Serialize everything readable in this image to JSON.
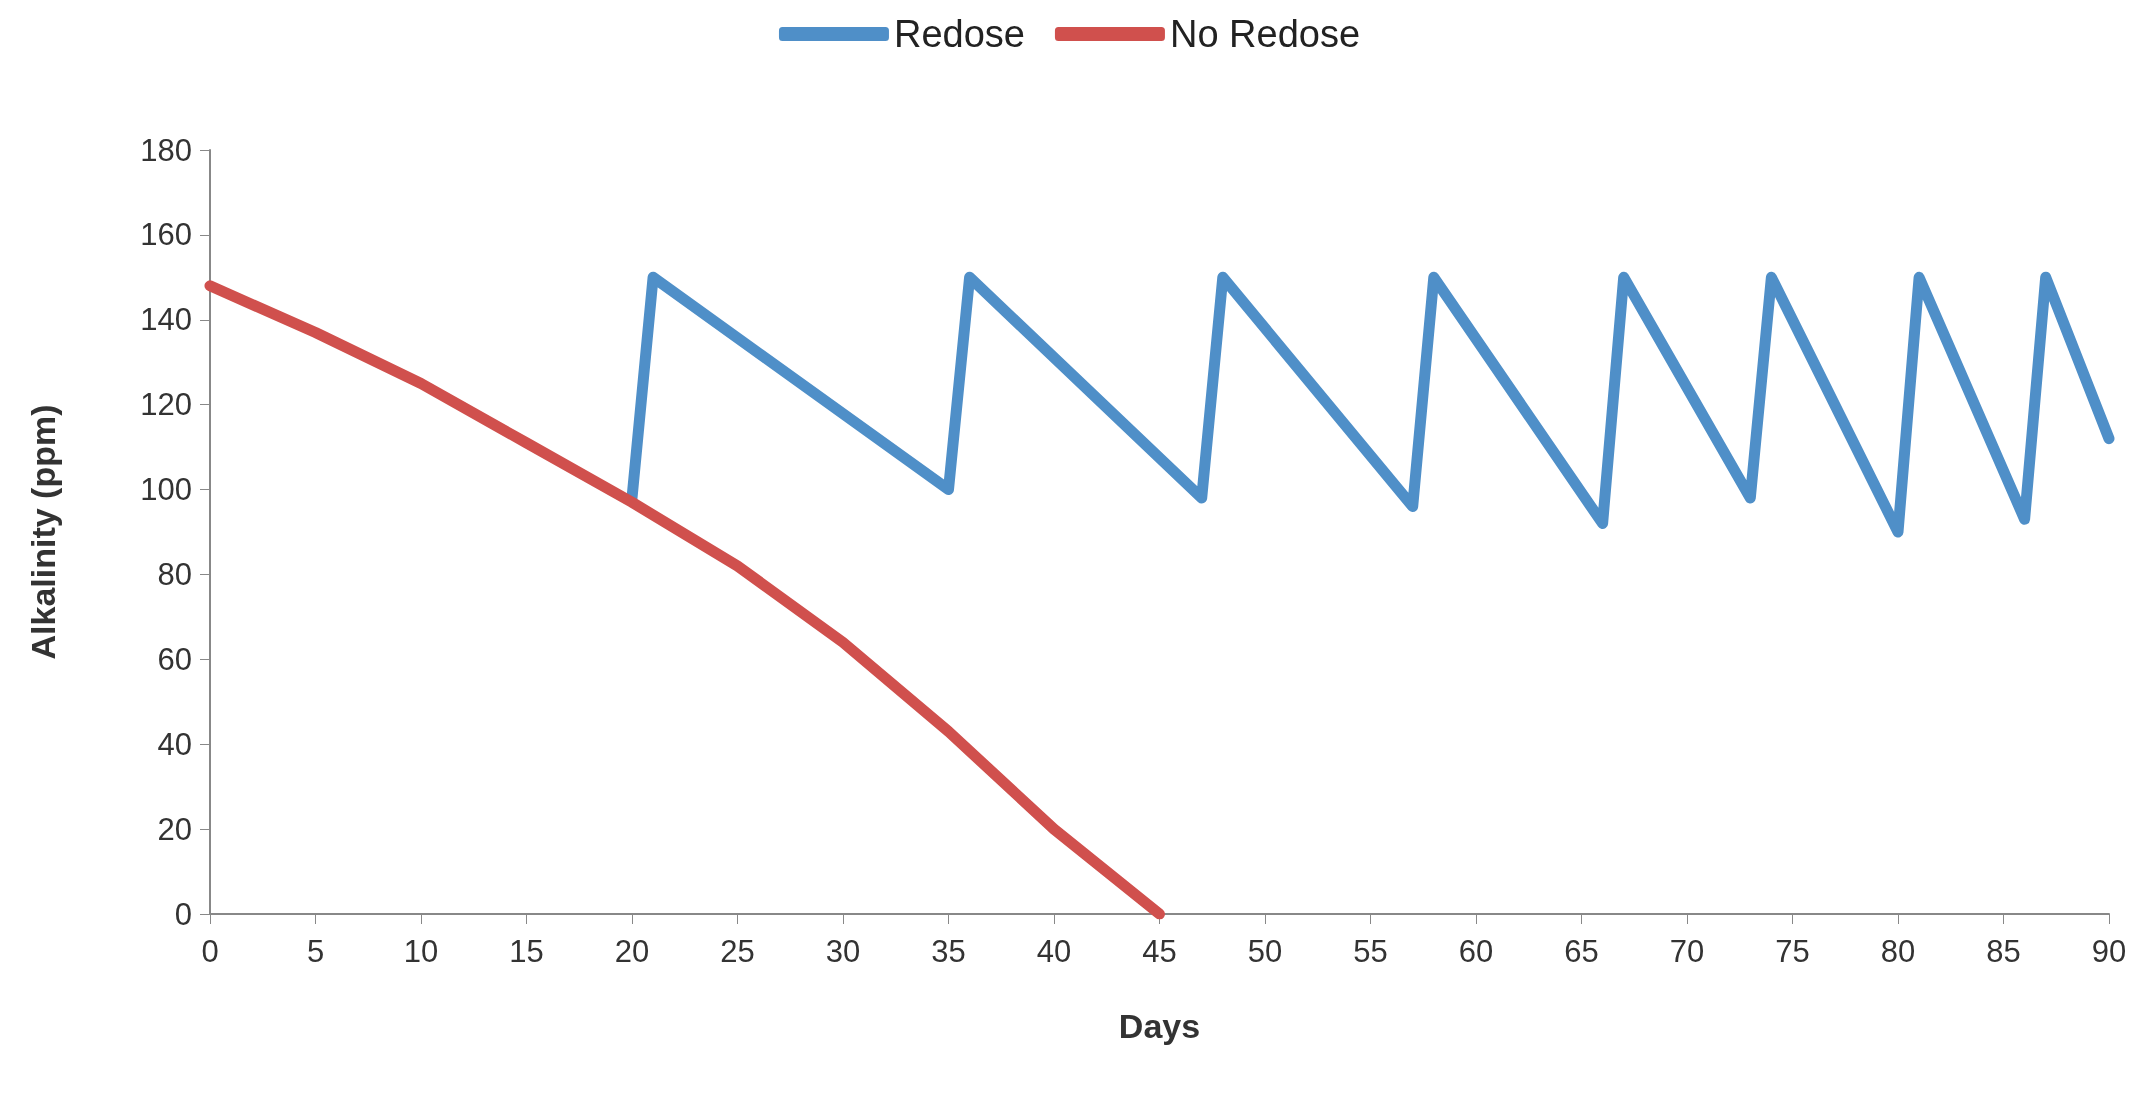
{
  "chart_data": {
    "type": "line",
    "xlabel": "Days",
    "ylabel": "Alkalinity (ppm)",
    "xlim": [
      0,
      90
    ],
    "xticks": [
      0,
      5,
      10,
      15,
      20,
      25,
      30,
      35,
      40,
      45,
      50,
      55,
      60,
      65,
      70,
      75,
      80,
      85,
      90
    ],
    "ylim": [
      0,
      180
    ],
    "yticks": [
      0,
      20,
      40,
      60,
      80,
      100,
      120,
      140,
      160,
      180
    ],
    "grid": false,
    "legend": "top",
    "marker": "none",
    "line_style": "solid",
    "series": [
      {
        "name": "Redose",
        "color": "#4f8fc8",
        "x": [
          20,
          21,
          35,
          36,
          47,
          48,
          57,
          58,
          66,
          67,
          73,
          74,
          80,
          81,
          86,
          87,
          90
        ],
        "values": [
          98,
          150,
          100,
          150,
          98,
          150,
          96,
          150,
          92,
          150,
          98,
          150,
          90,
          150,
          93,
          150,
          112
        ]
      },
      {
        "name": "No Redose",
        "color": "#d0504d",
        "x": [
          0,
          5,
          10,
          15,
          20,
          25,
          30,
          35,
          40,
          45
        ],
        "values": [
          148,
          137,
          125,
          111,
          97,
          82,
          64,
          43,
          20,
          0
        ]
      }
    ]
  }
}
